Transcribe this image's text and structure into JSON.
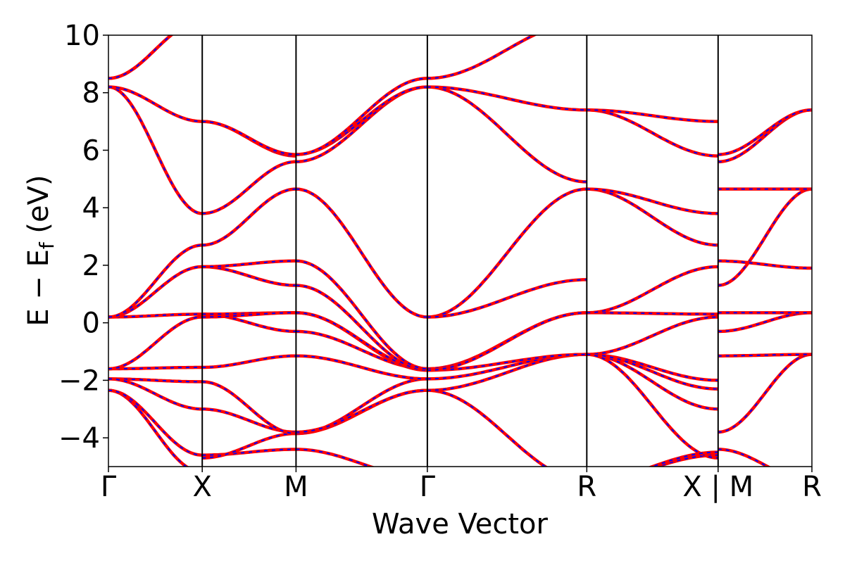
{
  "chart_data": {
    "type": "line",
    "title": "",
    "xlabel": "Wave Vector",
    "ylabel": "E − E_f (eV)",
    "ylabel_parts": {
      "main": "E − E",
      "sub": "f",
      "unit": " (eV)"
    },
    "ylim": [
      -5,
      10
    ],
    "yticks": [
      -4,
      -2,
      0,
      2,
      4,
      6,
      8,
      10
    ],
    "ytick_labels": [
      "−4",
      "−2",
      "0",
      "2",
      "4",
      "6",
      "8",
      "10"
    ],
    "grid": false,
    "legend": "none",
    "x_range": [
      0,
      7.5
    ],
    "kpoints": [
      {
        "label": "Γ",
        "x": 0
      },
      {
        "label": "X",
        "x": 1
      },
      {
        "label": "M",
        "x": 2
      },
      {
        "label": "Γ",
        "x": 3.4
      },
      {
        "label": "R",
        "x": 5.1
      },
      {
        "label": "X | M",
        "x": 6.5
      },
      {
        "label": "R",
        "x": 7.5
      }
    ],
    "style": {
      "series_a_color": "#ff0000",
      "series_b_color": "#0000ff",
      "series_b_dash": "dashed",
      "line_width_note": "thick red solid overlaid with blue dashed"
    },
    "segments": [
      {
        "name": "Γ-X",
        "x": [
          0,
          1
        ],
        "bands": [
          [
            -2.35,
            -5.2
          ],
          [
            -1.95,
            -2.05
          ],
          [
            -1.6,
            -1.55
          ],
          [
            -1.6,
            0.2
          ],
          [
            0.2,
            0.3
          ],
          [
            0.2,
            1.95
          ],
          [
            0.2,
            2.7
          ],
          [
            8.2,
            3.8
          ],
          [
            8.2,
            7.0
          ],
          [
            8.5,
            10.5
          ],
          [
            8.5,
            10.5
          ],
          [
            -1.95,
            -3.0
          ],
          [
            -2.35,
            -4.6
          ]
        ]
      },
      {
        "name": "X-M",
        "x": [
          1,
          2
        ],
        "bands": [
          [
            -4.6,
            -4.4
          ],
          [
            -4.7,
            -3.85
          ],
          [
            -3.0,
            -3.8
          ],
          [
            -2.05,
            -3.85
          ],
          [
            -1.55,
            -1.15
          ],
          [
            0.3,
            -0.3
          ],
          [
            0.3,
            0.35
          ],
          [
            0.2,
            0.35
          ],
          [
            1.95,
            1.3
          ],
          [
            1.95,
            2.15
          ],
          [
            2.7,
            4.65
          ],
          [
            3.8,
            5.6
          ],
          [
            7.0,
            5.8
          ],
          [
            7.0,
            5.85
          ]
        ]
      },
      {
        "name": "M-Γ",
        "x": [
          2,
          3.4
        ],
        "bands": [
          [
            -4.4,
            -5.4
          ],
          [
            -3.85,
            -2.35
          ],
          [
            -3.85,
            -1.95
          ],
          [
            -3.8,
            -2.35
          ],
          [
            -1.15,
            -1.95
          ],
          [
            -0.3,
            -1.6
          ],
          [
            0.35,
            -1.65
          ],
          [
            0.35,
            -1.6
          ],
          [
            1.3,
            -1.65
          ],
          [
            2.15,
            -1.6
          ],
          [
            4.65,
            0.2
          ],
          [
            5.6,
            8.2
          ],
          [
            5.85,
            8.2
          ],
          [
            5.85,
            8.5
          ]
        ]
      },
      {
        "name": "Γ-R",
        "x": [
          3.4,
          5.1
        ],
        "bands": [
          [
            -2.35,
            -5.5
          ],
          [
            -2.35,
            -1.1
          ],
          [
            -1.95,
            -1.1
          ],
          [
            -1.65,
            -1.1
          ],
          [
            -1.6,
            0.35
          ],
          [
            -1.65,
            0.35
          ],
          [
            0.2,
            4.65
          ],
          [
            0.2,
            1.5
          ],
          [
            8.2,
            4.9
          ],
          [
            8.2,
            7.4
          ],
          [
            8.5,
            10.5
          ]
        ]
      },
      {
        "name": "R-X",
        "x": [
          5.1,
          6.5
        ],
        "bands": [
          [
            -1.1,
            -2.0
          ],
          [
            -1.1,
            -3.0
          ],
          [
            -1.1,
            -2.3
          ],
          [
            -1.1,
            0.2
          ],
          [
            0.35,
            0.3
          ],
          [
            0.35,
            1.95
          ],
          [
            4.65,
            2.7
          ],
          [
            4.65,
            3.8
          ],
          [
            7.4,
            5.8
          ],
          [
            7.4,
            7.0
          ],
          [
            -5.5,
            -4.6
          ],
          [
            -1.1,
            -4.7
          ],
          [
            -5.5,
            -4.5
          ]
        ]
      },
      {
        "name": "M-R",
        "x": [
          6.5,
          7.5
        ],
        "bands": [
          [
            -3.8,
            -1.1
          ],
          [
            -1.15,
            -1.1
          ],
          [
            -0.3,
            0.35
          ],
          [
            0.35,
            0.35
          ],
          [
            1.3,
            4.65
          ],
          [
            2.15,
            1.9
          ],
          [
            4.65,
            4.65
          ],
          [
            5.6,
            7.4
          ],
          [
            5.85,
            7.4
          ],
          [
            -4.4,
            -5.5
          ]
        ]
      }
    ]
  }
}
